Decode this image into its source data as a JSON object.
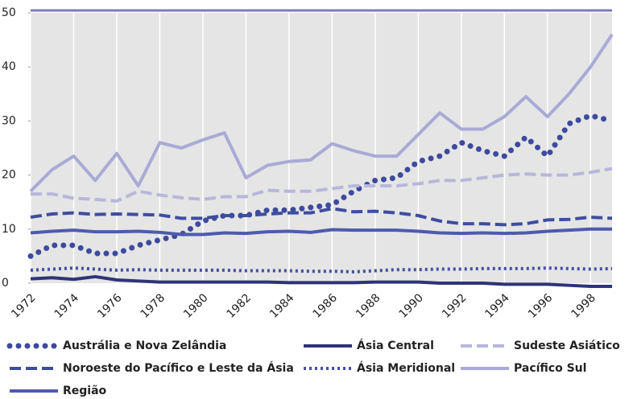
{
  "chart_data": {
    "type": "line",
    "x": [
      1972,
      1973,
      1974,
      1975,
      1976,
      1977,
      1978,
      1979,
      1980,
      1981,
      1982,
      1983,
      1984,
      1985,
      1986,
      1987,
      1988,
      1989,
      1990,
      1991,
      1992,
      1993,
      1994,
      1995,
      1996,
      1997,
      1998,
      1999
    ],
    "xlim": [
      1972,
      1999
    ],
    "xticks": [
      1972,
      1974,
      1976,
      1978,
      1980,
      1982,
      1984,
      1986,
      1988,
      1990,
      1992,
      1994,
      1996,
      1998
    ],
    "ylim": [
      0,
      50
    ],
    "yticks": [
      0,
      10,
      20,
      30,
      40,
      50
    ],
    "grid": true,
    "series": [
      {
        "name": "Austrália e Nova Zelândia",
        "color": "#3d4a9e",
        "style": "dotted",
        "values": [
          5,
          7,
          7,
          5.5,
          5.5,
          7,
          8,
          9,
          11.5,
          12.5,
          12.5,
          13.5,
          13.5,
          14,
          14.5,
          17,
          19,
          19.5,
          22.5,
          23.5,
          26,
          24.5,
          23.5,
          27,
          23.5,
          29.5,
          31,
          30
        ]
      },
      {
        "name": "Ásia Central",
        "color": "#2d3477",
        "style": "solid",
        "values": [
          0.8,
          1,
          0.7,
          1.2,
          0.6,
          0.4,
          0.2,
          0.2,
          0.2,
          0.2,
          0.2,
          0.2,
          0.1,
          0.1,
          0.1,
          0.1,
          0.2,
          0.2,
          0.2,
          0,
          0,
          0,
          -0.2,
          -0.2,
          -0.2,
          -0.4,
          -0.6,
          -0.6
        ]
      },
      {
        "name": "Sudeste Asiático",
        "color": "#b7b7dc",
        "style": "dashed",
        "values": [
          16.5,
          16.5,
          15.7,
          15.5,
          15.2,
          17,
          16.3,
          15.8,
          15.5,
          16,
          16,
          17.2,
          17,
          17,
          17.5,
          18,
          18,
          18,
          18.4,
          19,
          19,
          19.5,
          20,
          20.2,
          20,
          20,
          20.5,
          21.2
        ]
      },
      {
        "name": "Noroeste do Pacífico e Leste da Ásia",
        "color": "#3f4d9e",
        "style": "dashed",
        "values": [
          12.2,
          12.8,
          13,
          12.7,
          12.8,
          12.7,
          12.6,
          12,
          12,
          12.5,
          12.5,
          12.8,
          13,
          13,
          13.8,
          13.2,
          13.3,
          13,
          12.5,
          11.5,
          11,
          11,
          10.8,
          11,
          11.7,
          11.8,
          12.2,
          12
        ]
      },
      {
        "name": "Ásia Meridional",
        "color": "#4450a0",
        "style": "fine-dotted",
        "values": [
          2.4,
          2.6,
          2.8,
          2.6,
          2.4,
          2.5,
          2.4,
          2.4,
          2.4,
          2.4,
          2.3,
          2.3,
          2.3,
          2.2,
          2.2,
          2.1,
          2.3,
          2.5,
          2.5,
          2.6,
          2.6,
          2.7,
          2.7,
          2.7,
          2.8,
          2.7,
          2.6,
          2.7
        ]
      },
      {
        "name": "Pacífico Sul",
        "color": "#aaaad6",
        "style": "solid",
        "values": [
          17,
          21,
          23.5,
          19,
          24,
          18,
          26,
          25,
          26.5,
          27.8,
          19.5,
          21.8,
          22.5,
          22.8,
          25.8,
          24.5,
          23.5,
          23.5,
          27.5,
          31.5,
          28.5,
          28.5,
          30.8,
          34.5,
          30.8,
          35,
          40,
          46
        ]
      },
      {
        "name": "Região",
        "color": "#4e5bae",
        "style": "solid",
        "values": [
          9.3,
          9.6,
          9.8,
          9.5,
          9.5,
          9.6,
          9.4,
          9,
          9,
          9.3,
          9.2,
          9.5,
          9.6,
          9.4,
          9.9,
          9.8,
          9.8,
          9.8,
          9.6,
          9.3,
          9.2,
          9.3,
          9.2,
          9.3,
          9.6,
          9.8,
          10,
          10
        ]
      }
    ]
  }
}
